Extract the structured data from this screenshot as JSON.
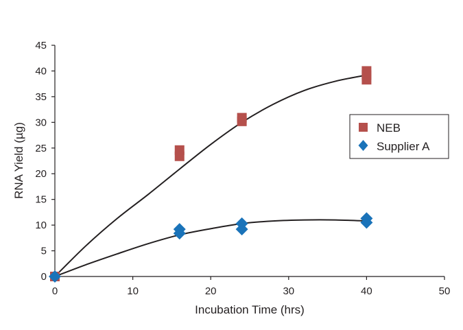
{
  "chart_data": {
    "type": "scatter",
    "title": "",
    "xlabel": "Incubation Time (hrs)",
    "ylabel": "RNA Yield (µg)",
    "xlim": [
      0,
      50
    ],
    "ylim": [
      0,
      45
    ],
    "xticks": [
      0,
      10,
      20,
      30,
      40,
      50
    ],
    "yticks": [
      0,
      5,
      10,
      15,
      20,
      25,
      30,
      35,
      40,
      45
    ],
    "x_tick_labels": [
      "0",
      "10",
      "20",
      "30",
      "40",
      "50"
    ],
    "y_tick_labels": [
      "0",
      "5",
      "10",
      "15",
      "20",
      "25",
      "30",
      "35",
      "40",
      "45"
    ],
    "grid": false,
    "legend_position": "right",
    "series": [
      {
        "name": "NEB",
        "marker": "square",
        "color": "#b5504c",
        "points": [
          [
            0,
            0
          ],
          [
            16,
            24.6
          ],
          [
            16,
            23.4
          ],
          [
            24,
            30.9
          ],
          [
            24,
            30.2
          ],
          [
            40,
            40.0
          ],
          [
            40,
            39.2
          ],
          [
            40,
            38.3
          ]
        ],
        "trend": [
          [
            0,
            0
          ],
          [
            4,
            6.0
          ],
          [
            8,
            11.3
          ],
          [
            12,
            16.0
          ],
          [
            16,
            20.9
          ],
          [
            20,
            25.7
          ],
          [
            24,
            30.0
          ],
          [
            28,
            33.5
          ],
          [
            32,
            36.2
          ],
          [
            36,
            38.0
          ],
          [
            40,
            39.2
          ]
        ]
      },
      {
        "name": "Supplier A",
        "marker": "diamond",
        "color": "#1a73b9",
        "points": [
          [
            0,
            0
          ],
          [
            16,
            9.2
          ],
          [
            16,
            8.4
          ],
          [
            24,
            10.3
          ],
          [
            24,
            9.2
          ],
          [
            40,
            11.3
          ],
          [
            40,
            10.5
          ]
        ],
        "trend": [
          [
            0,
            0
          ],
          [
            4,
            2.3
          ],
          [
            8,
            4.4
          ],
          [
            12,
            6.4
          ],
          [
            16,
            8.1
          ],
          [
            20,
            9.3
          ],
          [
            24,
            10.3
          ],
          [
            28,
            10.8
          ],
          [
            32,
            11.0
          ],
          [
            36,
            11.0
          ],
          [
            40,
            10.8
          ]
        ]
      }
    ]
  }
}
